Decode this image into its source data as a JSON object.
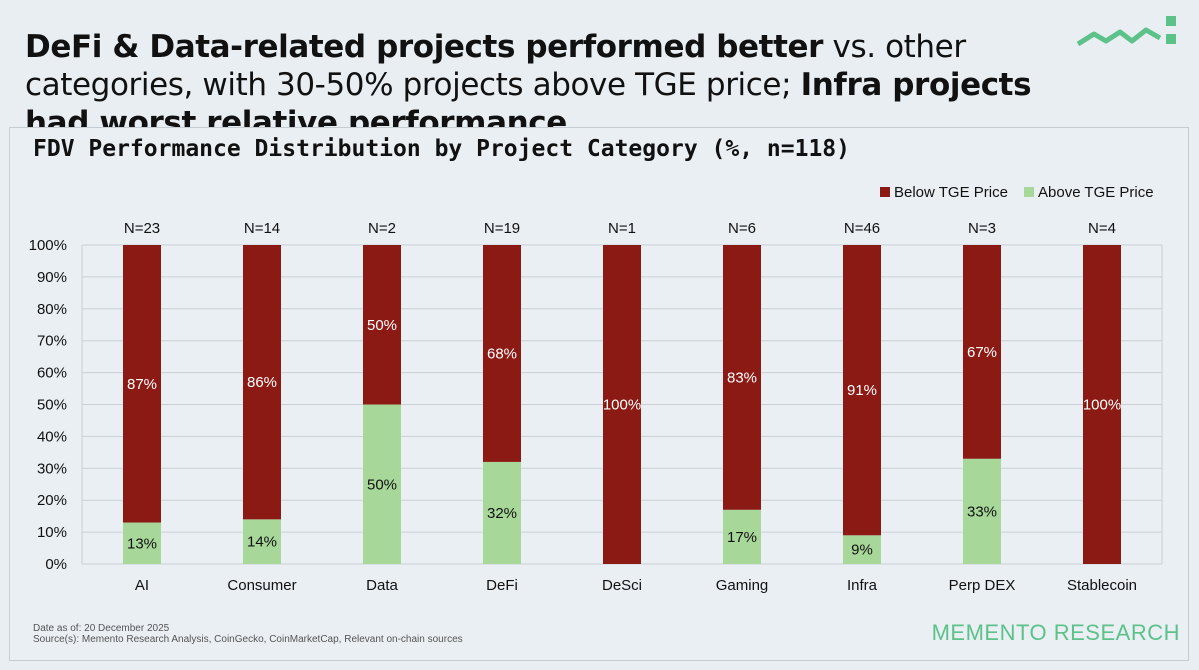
{
  "headline": {
    "part1_bold": "DeFi & Data-related projects performed better",
    "part2": " vs. other categories, with 30-50% projects above TGE price; ",
    "part3_bold": "Infra projects had worst relative performance"
  },
  "logo": {
    "icon": "memento-wave-logo-icon",
    "color": "#5cc28a"
  },
  "chart_data": {
    "type": "bar",
    "stacked": true,
    "title": "FDV Performance Distribution by Project Category (%, n=118)",
    "categories": [
      "AI",
      "Consumer",
      "Data",
      "DeFi",
      "DeSci",
      "Gaming",
      "Infra",
      "Perp DEX",
      "Stablecoin"
    ],
    "n_labels": [
      "N=23",
      "N=14",
      "N=2",
      "N=19",
      "N=1",
      "N=6",
      "N=46",
      "N=3",
      "N=4"
    ],
    "series": [
      {
        "name": "Above TGE Price",
        "color": "#a8d79a",
        "values": [
          13,
          14,
          50,
          32,
          0,
          17,
          9,
          33,
          0
        ],
        "labels": [
          "13%",
          "14%",
          "50%",
          "32%",
          "",
          "17%",
          "9%",
          "33%",
          ""
        ]
      },
      {
        "name": "Below TGE Price",
        "color": "#8b1a15",
        "values": [
          87,
          86,
          50,
          68,
          100,
          83,
          91,
          67,
          100
        ],
        "labels": [
          "87%",
          "86%",
          "50%",
          "68%",
          "100%",
          "83%",
          "91%",
          "67%",
          "100%"
        ]
      }
    ],
    "legend_order": [
      "Below TGE Price",
      "Above TGE Price"
    ],
    "legend_position": "top-right",
    "ylim": [
      0,
      100
    ],
    "yticks": [
      "0%",
      "10%",
      "20%",
      "30%",
      "40%",
      "50%",
      "60%",
      "70%",
      "80%",
      "90%",
      "100%"
    ],
    "grid": true,
    "xlabel": "",
    "ylabel": ""
  },
  "footer": {
    "date": "Date as of: 20 December 2025",
    "sources": "Source(s): Memento Research Analysis, CoinGecko, CoinMarketCap, Relevant on-chain sources",
    "brand": "MEMENTO RESEARCH"
  }
}
